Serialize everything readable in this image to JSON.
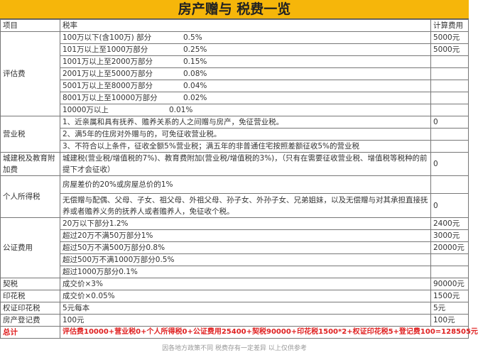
{
  "title": "房产赠与 税费一览",
  "header": {
    "item": "项目",
    "rate": "税率",
    "cost": "计算费用"
  },
  "appraisal": {
    "label": "评估费",
    "rows": [
      {
        "range": "100万以下(含100万) 部分",
        "rate": "0.5%",
        "cost": "5000元"
      },
      {
        "range": "101万以上至1000万部分",
        "rate": "0.25%",
        "cost": "5000元"
      },
      {
        "range": "1001万以上至2000万部分",
        "rate": "0.15%",
        "cost": ""
      },
      {
        "range": "2001万以上至5000万部分",
        "rate": "0.08%",
        "cost": ""
      },
      {
        "range": "5001万以上至8000万部分",
        "rate": "0.04%",
        "cost": ""
      },
      {
        "range": "8001万以上至10000万部分",
        "rate": "0.02%",
        "cost": ""
      },
      {
        "range": "10000万以上",
        "rate": "0.01%",
        "cost": ""
      }
    ]
  },
  "business_tax": {
    "label": "营业税",
    "rows": [
      "1、近亲属和具有抚养、赡养关系的人之间赠与房产，免征营业税。",
      "2、满5年的住房对外赠与的，可免征收营业税。",
      "3、不符合以上条件，征收全额5%营业税；满五年的非普通住宅按照差额征收5%的营业税"
    ],
    "cost": "0"
  },
  "urban_tax": {
    "label": "城建税及教育附加费",
    "text": "城建税(营业税/增值税的7%)、教育费附加(营业税/增值税的3%)，（只有在需要征收营业税、增值税等税种的前提下才会征收）",
    "cost": "0"
  },
  "income_tax": {
    "label": "个人所得税",
    "rows": [
      "房屋差价的20%或房屋总价的1%",
      "无偿赠与配偶、父母、子女、祖父母、外祖父母、孙子女、外孙子女、兄弟姐妹，以及无偿赠与对其承担直接抚养或者赡养义务的抚养人或者赡养人，免征收个税。"
    ],
    "cost": "0"
  },
  "notary": {
    "label": "公证费用",
    "rows": [
      {
        "text": "20万以下部分1.2%",
        "cost": "2400元"
      },
      {
        "text": "超过20万不满50万部分1%",
        "cost": "3000元"
      },
      {
        "text": "超过50万不满500万部分0.8%",
        "cost": "20000元"
      },
      {
        "text": "超过500万不满1000万部分0.5%",
        "cost": ""
      },
      {
        "text": "超过1000万部分0.1%",
        "cost": ""
      }
    ]
  },
  "deed_tax": {
    "label": "契税",
    "text": "成交价×3%",
    "cost": "90000元"
  },
  "stamp_tax": {
    "label": "印花税",
    "text": "成交价×0.05%",
    "cost": "1500元"
  },
  "cert_stamp": {
    "label": "权证印花税",
    "text": "5元每本",
    "cost": "5元"
  },
  "registration": {
    "label": "房产登记费",
    "text": "100元",
    "cost": "100元"
  },
  "total": {
    "label": "总计",
    "text": "评估费10000+营业税0+个人所得税0+公证费用25400+契税90000+印花税1500*2+权证印花税5+登记费100=128505元"
  },
  "footnote": "因各地方政策不同 税费存有一定差异 以上仅供参考",
  "colors": {
    "title_bg": "#f6b60a",
    "total_text": "#e02020"
  }
}
